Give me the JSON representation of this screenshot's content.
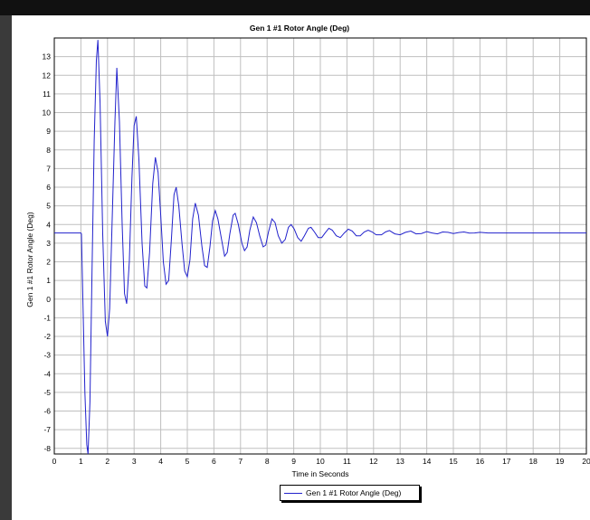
{
  "chart_data": {
    "type": "line",
    "title": "Gen 1 #1 Rotor Angle (Deg)",
    "xlabel": "Time in Seconds",
    "ylabel": "Gen 1 #1 Rotor Angle (Deg)",
    "xlim": [
      0,
      20
    ],
    "ylim": [
      -8.3,
      14
    ],
    "xticks": [
      "0",
      "1",
      "2",
      "3",
      "4",
      "5",
      "6",
      "7",
      "8",
      "9",
      "10",
      "11",
      "12",
      "13",
      "14",
      "15",
      "16",
      "17",
      "18",
      "19",
      "20"
    ],
    "yticks": [
      "-8",
      "-7",
      "-6",
      "-5",
      "-4",
      "-3",
      "-2",
      "-1",
      "0",
      "1",
      "2",
      "3",
      "4",
      "5",
      "6",
      "7",
      "8",
      "9",
      "10",
      "11",
      "12",
      "13"
    ],
    "grid": true,
    "legend_position": "bottom-center",
    "series": [
      {
        "name": "Gen 1 #1 Rotor Angle (Deg)",
        "color": "#2222cc",
        "points": [
          [
            0,
            3.55
          ],
          [
            1.0,
            3.55
          ],
          [
            1.02,
            3.5
          ],
          [
            1.08,
            -0.5
          ],
          [
            1.15,
            -5
          ],
          [
            1.22,
            -7.8
          ],
          [
            1.27,
            -8.3
          ],
          [
            1.34,
            -5.5
          ],
          [
            1.42,
            1.5
          ],
          [
            1.5,
            8.5
          ],
          [
            1.58,
            12.8
          ],
          [
            1.64,
            13.9
          ],
          [
            1.72,
            10.5
          ],
          [
            1.82,
            3.5
          ],
          [
            1.92,
            -1.2
          ],
          [
            2.0,
            -2
          ],
          [
            2.08,
            -0.5
          ],
          [
            2.18,
            4.5
          ],
          [
            2.28,
            9.5
          ],
          [
            2.35,
            12.4
          ],
          [
            2.45,
            9.5
          ],
          [
            2.55,
            4
          ],
          [
            2.64,
            0.3
          ],
          [
            2.72,
            -0.25
          ],
          [
            2.82,
            2
          ],
          [
            2.92,
            6.5
          ],
          [
            3.0,
            9.3
          ],
          [
            3.08,
            9.8
          ],
          [
            3.18,
            7.5
          ],
          [
            3.3,
            3
          ],
          [
            3.4,
            0.7
          ],
          [
            3.48,
            0.6
          ],
          [
            3.58,
            2.5
          ],
          [
            3.7,
            6.2
          ],
          [
            3.8,
            7.6
          ],
          [
            3.9,
            6.8
          ],
          [
            4.0,
            4.5
          ],
          [
            4.1,
            2
          ],
          [
            4.2,
            0.8
          ],
          [
            4.3,
            1
          ],
          [
            4.4,
            3.2
          ],
          [
            4.5,
            5.6
          ],
          [
            4.58,
            6
          ],
          [
            4.68,
            5
          ],
          [
            4.8,
            3
          ],
          [
            4.9,
            1.5
          ],
          [
            5.0,
            1.2
          ],
          [
            5.1,
            2.1
          ],
          [
            5.2,
            4.3
          ],
          [
            5.3,
            5.15
          ],
          [
            5.42,
            4.5
          ],
          [
            5.55,
            2.8
          ],
          [
            5.65,
            1.8
          ],
          [
            5.75,
            1.7
          ],
          [
            5.85,
            2.8
          ],
          [
            5.95,
            4.2
          ],
          [
            6.05,
            4.75
          ],
          [
            6.15,
            4.3
          ],
          [
            6.3,
            3.1
          ],
          [
            6.4,
            2.3
          ],
          [
            6.5,
            2.5
          ],
          [
            6.6,
            3.5
          ],
          [
            6.72,
            4.5
          ],
          [
            6.8,
            4.6
          ],
          [
            6.92,
            4
          ],
          [
            7.05,
            3
          ],
          [
            7.15,
            2.6
          ],
          [
            7.25,
            2.8
          ],
          [
            7.35,
            3.7
          ],
          [
            7.48,
            4.4
          ],
          [
            7.6,
            4.1
          ],
          [
            7.72,
            3.4
          ],
          [
            7.85,
            2.8
          ],
          [
            7.95,
            2.9
          ],
          [
            8.05,
            3.6
          ],
          [
            8.18,
            4.3
          ],
          [
            8.3,
            4.1
          ],
          [
            8.42,
            3.4
          ],
          [
            8.55,
            3
          ],
          [
            8.68,
            3.2
          ],
          [
            8.8,
            3.85
          ],
          [
            8.9,
            4
          ],
          [
            9.02,
            3.75
          ],
          [
            9.15,
            3.3
          ],
          [
            9.28,
            3.1
          ],
          [
            9.4,
            3.4
          ],
          [
            9.55,
            3.8
          ],
          [
            9.65,
            3.85
          ],
          [
            9.78,
            3.6
          ],
          [
            9.92,
            3.3
          ],
          [
            10.05,
            3.3
          ],
          [
            10.18,
            3.55
          ],
          [
            10.32,
            3.8
          ],
          [
            10.45,
            3.7
          ],
          [
            10.6,
            3.4
          ],
          [
            10.75,
            3.3
          ],
          [
            10.9,
            3.55
          ],
          [
            11.05,
            3.75
          ],
          [
            11.2,
            3.65
          ],
          [
            11.35,
            3.4
          ],
          [
            11.5,
            3.4
          ],
          [
            11.65,
            3.6
          ],
          [
            11.8,
            3.7
          ],
          [
            11.95,
            3.6
          ],
          [
            12.1,
            3.45
          ],
          [
            12.3,
            3.45
          ],
          [
            12.45,
            3.6
          ],
          [
            12.6,
            3.68
          ],
          [
            12.8,
            3.5
          ],
          [
            13.0,
            3.45
          ],
          [
            13.2,
            3.58
          ],
          [
            13.4,
            3.65
          ],
          [
            13.6,
            3.5
          ],
          [
            13.8,
            3.52
          ],
          [
            14.0,
            3.62
          ],
          [
            14.2,
            3.55
          ],
          [
            14.4,
            3.5
          ],
          [
            14.6,
            3.6
          ],
          [
            14.8,
            3.58
          ],
          [
            15.0,
            3.52
          ],
          [
            15.2,
            3.57
          ],
          [
            15.4,
            3.6
          ],
          [
            15.6,
            3.54
          ],
          [
            15.8,
            3.55
          ],
          [
            16.0,
            3.58
          ],
          [
            16.3,
            3.55
          ],
          [
            17,
            3.55
          ],
          [
            18,
            3.55
          ],
          [
            19,
            3.55
          ],
          [
            20,
            3.55
          ]
        ]
      }
    ]
  }
}
